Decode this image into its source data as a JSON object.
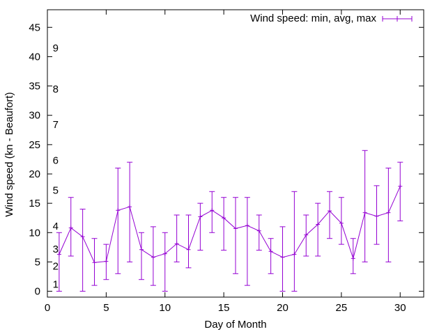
{
  "chart_data": {
    "type": "line",
    "title": "",
    "xlabel": "Day of Month",
    "ylabel": "Wind speed (kn - Beaufort)",
    "xlim": [
      0,
      32
    ],
    "ylim": [
      -1,
      48
    ],
    "x_ticks": [
      0,
      5,
      10,
      15,
      20,
      25,
      30
    ],
    "y_ticks": [
      0,
      5,
      10,
      15,
      20,
      25,
      30,
      35,
      40,
      45
    ],
    "grid": false,
    "legend_position": "top-right",
    "series": [
      {
        "name": "Wind speed: min, avg, max",
        "color": "#9400d3",
        "style": "errorbars with line",
        "points": [
          {
            "x": 1,
            "y": 6.3,
            "min": 0,
            "max": 10
          },
          {
            "x": 2,
            "y": 10.8,
            "min": 6,
            "max": 16
          },
          {
            "x": 3,
            "y": 9.3,
            "min": 0,
            "max": 14
          },
          {
            "x": 4,
            "y": 4.9,
            "min": 1,
            "max": 9
          },
          {
            "x": 5,
            "y": 5.1,
            "min": 2,
            "max": 8
          },
          {
            "x": 6,
            "y": 13.8,
            "min": 3,
            "max": 21
          },
          {
            "x": 7,
            "y": 14.4,
            "min": 5,
            "max": 22
          },
          {
            "x": 8,
            "y": 7.1,
            "min": 2,
            "max": 10
          },
          {
            "x": 9,
            "y": 5.8,
            "min": 1,
            "max": 11
          },
          {
            "x": 10,
            "y": 6.4,
            "min": 0,
            "max": 10
          },
          {
            "x": 11,
            "y": 8.1,
            "min": 5,
            "max": 13
          },
          {
            "x": 12,
            "y": 7.1,
            "min": 4,
            "max": 13
          },
          {
            "x": 13,
            "y": 12.7,
            "min": 7,
            "max": 15
          },
          {
            "x": 14,
            "y": 13.8,
            "min": 10,
            "max": 17
          },
          {
            "x": 15,
            "y": 12.5,
            "min": 7,
            "max": 16
          },
          {
            "x": 16,
            "y": 10.7,
            "min": 3,
            "max": 16
          },
          {
            "x": 17,
            "y": 11.2,
            "min": 1,
            "max": 16
          },
          {
            "x": 18,
            "y": 10.3,
            "min": 7,
            "max": 13
          },
          {
            "x": 19,
            "y": 6.8,
            "min": 3,
            "max": 9
          },
          {
            "x": 20,
            "y": 5.8,
            "min": 0,
            "max": 11
          },
          {
            "x": 21,
            "y": 6.3,
            "min": 0,
            "max": 17
          },
          {
            "x": 22,
            "y": 9.6,
            "min": 6,
            "max": 13
          },
          {
            "x": 23,
            "y": 11.4,
            "min": 6,
            "max": 15
          },
          {
            "x": 24,
            "y": 13.7,
            "min": 9,
            "max": 17
          },
          {
            "x": 25,
            "y": 11.6,
            "min": 8,
            "max": 16
          },
          {
            "x": 26,
            "y": 5.6,
            "min": 3,
            "max": 9
          },
          {
            "x": 27,
            "y": 13.4,
            "min": 5,
            "max": 24
          },
          {
            "x": 28,
            "y": 12.8,
            "min": 8,
            "max": 18
          },
          {
            "x": 29,
            "y": 13.4,
            "min": 5,
            "max": 21
          },
          {
            "x": 30,
            "y": 17.9,
            "min": 12,
            "max": 22
          }
        ]
      }
    ],
    "annotations": [
      {
        "text": "1",
        "x": 0.45,
        "y": 1.2
      },
      {
        "text": "2",
        "x": 0.45,
        "y": 4.3
      },
      {
        "text": "3",
        "x": 0.45,
        "y": 7.2
      },
      {
        "text": "4",
        "x": 0.45,
        "y": 11.1
      },
      {
        "text": "5",
        "x": 0.45,
        "y": 17.2
      },
      {
        "text": "6",
        "x": 0.45,
        "y": 22.3
      },
      {
        "text": "7",
        "x": 0.45,
        "y": 28.4
      },
      {
        "text": "8",
        "x": 0.45,
        "y": 34.5
      },
      {
        "text": "9",
        "x": 0.45,
        "y": 41.5
      }
    ]
  }
}
